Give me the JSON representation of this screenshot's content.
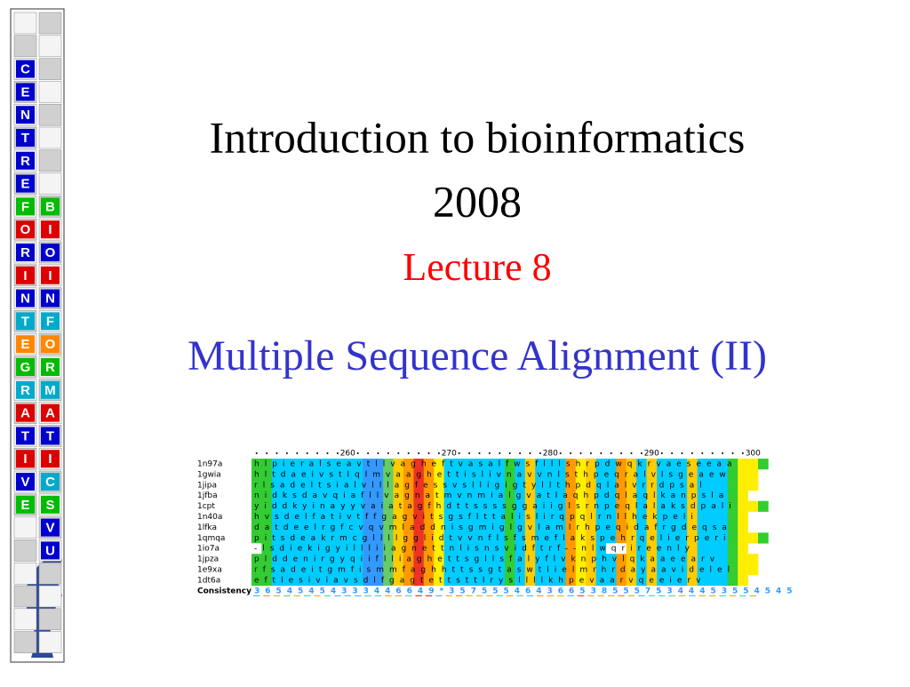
{
  "sidebar": {
    "left_letters": [
      "C",
      "E",
      "N",
      "T",
      "R",
      "E",
      "F",
      "O",
      "R",
      "I",
      "N",
      "T",
      "E",
      "G",
      "R",
      "A",
      "T",
      "I",
      "V",
      "E"
    ],
    "right_letters": [
      "B",
      "I",
      "O",
      "I",
      "N",
      "F",
      "O",
      "R",
      "M",
      "A",
      "T",
      "I",
      "C",
      "S",
      "V",
      "U"
    ]
  },
  "slide": {
    "title_line1": "Introduction to bioinformatics",
    "title_line2": "2008",
    "lecture": "Lecture 8",
    "subtitle": "Multiple Sequence Alignment (II)"
  },
  "alignment": {
    "ruler": [
      "260",
      "270",
      "280",
      "290",
      "300"
    ],
    "rows": [
      {
        "name": "1n97a",
        "seq": "hlpieralseavtllvagheftvasalfwsflllshrpdwqkrvaeseeaa"
      },
      {
        "name": "1gwia",
        "seq": "hltdaeivstlqlmvaaghettislivnavvnlsthpeqralvlsgeaew"
      },
      {
        "name": "1jipa",
        "seq": "rlsadeltsialvlllagfessvslligigtyllthpdqlalvrrdpsal"
      },
      {
        "name": "1jfba",
        "seq": "nidksdavqiafllvagnatmvnmialgvatlaqhpdqlaqlkanpsla"
      },
      {
        "name": "1cpt",
        "seq": "yiddkyinayyvaiatagfhdttssssggaiiglsrnpeqlalaksdpali"
      },
      {
        "name": "1n40a",
        "seq": "hvsdelfativtffgagvitsgsflttalislirqpqlrnllhekpeli"
      },
      {
        "name": "1lfka",
        "seq": "datdeelrgfcvqvmladdnisgmiglgvlamlrhpeqidafrgdeqsa"
      },
      {
        "name": "1qmqa",
        "seq": "pitsdeakrmcgllllgglidtvvnflsfsmeflakspehrqelierperi"
      },
      {
        "name": "1io7a",
        "seq": "-lsdiekigyillliiagnettnlisnsvidftrf--nlwqrireenly"
      },
      {
        "name": "1jpza",
        "seq": "plddenirgyqiiflliaghettsgllsfalyflvknphvlqkaaeearv"
      },
      {
        "name": "1e9xa",
        "seq": "rfsadeitgmfismmfaghhttssgtaswtlielmrhrdayaavidelel"
      },
      {
        "name": "1dt6a",
        "seq": "eftlesiviavsdlfgagtettsttlrysllllkhpevaarvqeeierv"
      }
    ],
    "consistency_label": "Consistency",
    "consistency": "36545454333446649*35755546436653855575344453554545"
  }
}
